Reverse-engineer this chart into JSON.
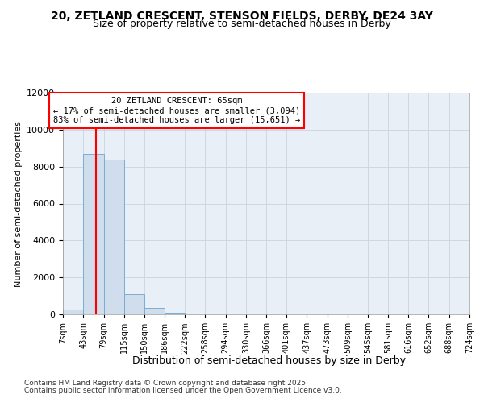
{
  "title_line1": "20, ZETLAND CRESCENT, STENSON FIELDS, DERBY, DE24 3AY",
  "title_line2": "Size of property relative to semi-detached houses in Derby",
  "xlabel": "Distribution of semi-detached houses by size in Derby",
  "ylabel": "Number of semi-detached properties",
  "annotation_text": "20 ZETLAND CRESCENT: 65sqm\n← 17% of semi-detached houses are smaller (3,094)\n83% of semi-detached houses are larger (15,651) →",
  "bin_edges": [
    7,
    43,
    79,
    115,
    150,
    186,
    222,
    258,
    294,
    330,
    366,
    401,
    437,
    473,
    509,
    545,
    581,
    616,
    652,
    688,
    724
  ],
  "bin_labels": [
    "7sqm",
    "43sqm",
    "79sqm",
    "115sqm",
    "150sqm",
    "186sqm",
    "222sqm",
    "258sqm",
    "294sqm",
    "330sqm",
    "366sqm",
    "401sqm",
    "437sqm",
    "473sqm",
    "509sqm",
    "545sqm",
    "581sqm",
    "616sqm",
    "652sqm",
    "688sqm",
    "724sqm"
  ],
  "bar_heights": [
    250,
    8700,
    8400,
    1100,
    330,
    70,
    10,
    0,
    0,
    0,
    0,
    0,
    0,
    0,
    0,
    0,
    0,
    0,
    0,
    0
  ],
  "bar_color": "#cfdded",
  "bar_edge_color": "#7aadd4",
  "red_line_x": 65,
  "ylim": [
    0,
    12000
  ],
  "yticks": [
    0,
    2000,
    4000,
    6000,
    8000,
    10000,
    12000
  ],
  "background_color": "#ffffff",
  "plot_bg_color": "#e8eff7",
  "grid_color": "#c8d4e0",
  "footer_line1": "Contains HM Land Registry data © Crown copyright and database right 2025.",
  "footer_line2": "Contains public sector information licensed under the Open Government Licence v3.0."
}
